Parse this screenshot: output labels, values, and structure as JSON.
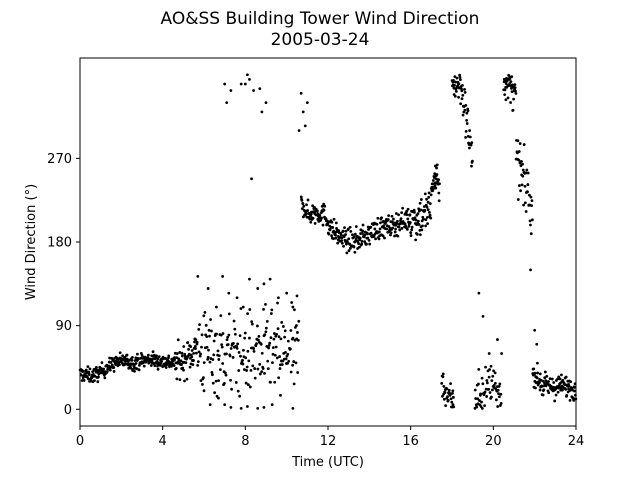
{
  "chart_data": {
    "type": "scatter",
    "title": "AO&SS Building Tower Wind Direction",
    "subtitle": "2005-03-24",
    "xlabel": "Time (UTC)",
    "ylabel": "Wind Direction (°)",
    "xlim": [
      0,
      24
    ],
    "ylim": [
      -18,
      378
    ],
    "xticks": [
      0,
      4,
      8,
      12,
      16,
      20,
      24
    ],
    "yticks": [
      0,
      90,
      180,
      270
    ],
    "grid": false,
    "marker_color": "#000000",
    "segments": [
      {
        "start": 0.0,
        "end": 4.6,
        "points": [
          [
            0.0,
            38
          ],
          [
            0.6,
            36
          ],
          [
            1.0,
            40
          ],
          [
            1.4,
            46
          ],
          [
            1.8,
            51
          ],
          [
            2.2,
            52
          ],
          [
            2.6,
            50
          ],
          [
            3.0,
            52
          ],
          [
            3.4,
            54
          ],
          [
            3.8,
            52
          ],
          [
            4.2,
            51
          ],
          [
            4.6,
            50
          ]
        ],
        "noise": 4,
        "n": 280
      },
      {
        "start": 4.6,
        "end": 5.6,
        "points": [
          [
            4.6,
            50
          ],
          [
            5.0,
            52
          ],
          [
            5.3,
            58
          ],
          [
            5.6,
            66
          ]
        ],
        "noise": 9,
        "n": 60
      },
      {
        "start": 5.6,
        "end": 10.6,
        "points": [
          [
            5.6,
            66
          ],
          [
            6.5,
            62
          ],
          [
            7.5,
            58
          ],
          [
            8.5,
            62
          ],
          [
            9.5,
            60
          ],
          [
            10.6,
            60
          ]
        ],
        "noise": 22,
        "n": 220
      },
      {
        "start": 10.7,
        "end": 12.6,
        "points": [
          [
            10.7,
            225
          ],
          [
            11.0,
            210
          ],
          [
            11.5,
            212
          ],
          [
            11.9,
            208
          ],
          [
            12.1,
            195
          ],
          [
            12.6,
            185
          ]
        ],
        "noise": 6,
        "n": 110
      },
      {
        "start": 12.6,
        "end": 16.0,
        "points": [
          [
            12.6,
            185
          ],
          [
            13.2,
            180
          ],
          [
            13.8,
            186
          ],
          [
            14.4,
            195
          ],
          [
            15.0,
            196
          ],
          [
            15.5,
            202
          ],
          [
            16.0,
            205
          ]
        ],
        "noise": 6,
        "n": 190
      },
      {
        "start": 16.0,
        "end": 17.0,
        "points": [
          [
            16.0,
            205
          ],
          [
            16.5,
            208
          ],
          [
            17.0,
            216
          ]
        ],
        "noise": 12,
        "n": 60
      },
      {
        "start": 17.0,
        "end": 17.4,
        "points": [
          [
            17.0,
            230
          ],
          [
            17.2,
            255
          ],
          [
            17.4,
            240
          ]
        ],
        "noise": 10,
        "n": 30
      },
      {
        "start": 17.5,
        "end": 18.1,
        "points": [
          [
            17.5,
            30
          ],
          [
            17.8,
            15
          ],
          [
            18.1,
            8
          ]
        ],
        "noise": 8,
        "n": 35
      },
      {
        "start": 18.0,
        "end": 19.0,
        "points": [
          [
            18.0,
            355
          ],
          [
            18.4,
            350
          ],
          [
            18.8,
            300
          ],
          [
            19.0,
            270
          ]
        ],
        "noise": 12,
        "n": 60
      },
      {
        "start": 19.1,
        "end": 20.4,
        "points": [
          [
            19.1,
            5
          ],
          [
            19.6,
            20
          ],
          [
            20.0,
            30
          ],
          [
            20.4,
            15
          ]
        ],
        "noise": 14,
        "n": 60
      },
      {
        "start": 20.5,
        "end": 21.1,
        "points": [
          [
            20.5,
            355
          ],
          [
            20.8,
            348
          ],
          [
            21.1,
            335
          ]
        ],
        "noise": 10,
        "n": 40
      },
      {
        "start": 21.1,
        "end": 21.9,
        "points": [
          [
            21.1,
            270
          ],
          [
            21.4,
            250
          ],
          [
            21.7,
            230
          ],
          [
            21.9,
            210
          ]
        ],
        "noise": 14,
        "n": 45
      },
      {
        "start": 21.9,
        "end": 24.0,
        "points": [
          [
            21.9,
            40
          ],
          [
            22.4,
            25
          ],
          [
            23.0,
            24
          ],
          [
            23.6,
            25
          ],
          [
            24.0,
            22
          ]
        ],
        "noise": 6,
        "n": 130
      }
    ],
    "outliers": [
      [
        5.7,
        143
      ],
      [
        6.2,
        130
      ],
      [
        6.6,
        110
      ],
      [
        6.9,
        143
      ],
      [
        7.2,
        125
      ],
      [
        7.6,
        120
      ],
      [
        7.9,
        110
      ],
      [
        8.2,
        140
      ],
      [
        8.6,
        130
      ],
      [
        8.9,
        135
      ],
      [
        9.2,
        140
      ],
      [
        9.6,
        120
      ],
      [
        10.0,
        125
      ],
      [
        10.3,
        110
      ],
      [
        10.5,
        122
      ],
      [
        6.0,
        20
      ],
      [
        6.3,
        5
      ],
      [
        6.7,
        12
      ],
      [
        7.0,
        5
      ],
      [
        7.3,
        2
      ],
      [
        7.8,
        1
      ],
      [
        8.1,
        3
      ],
      [
        8.6,
        1
      ],
      [
        8.9,
        2
      ],
      [
        9.3,
        5
      ],
      [
        9.7,
        15
      ],
      [
        10.3,
        1
      ],
      [
        7.0,
        350
      ],
      [
        7.1,
        330
      ],
      [
        7.3,
        343
      ],
      [
        7.8,
        350
      ],
      [
        8.0,
        350
      ],
      [
        8.1,
        360
      ],
      [
        8.2,
        355
      ],
      [
        8.3,
        248
      ],
      [
        8.4,
        343
      ],
      [
        8.7,
        345
      ],
      [
        8.8,
        320
      ],
      [
        9.0,
        330
      ],
      [
        10.7,
        340
      ],
      [
        10.8,
        320
      ],
      [
        10.9,
        305
      ],
      [
        11.0,
        330
      ],
      [
        10.6,
        300
      ],
      [
        19.3,
        125
      ],
      [
        19.5,
        100
      ],
      [
        19.8,
        60
      ],
      [
        20.2,
        75
      ],
      [
        20.4,
        60
      ],
      [
        21.8,
        150
      ],
      [
        22.0,
        85
      ],
      [
        22.1,
        70
      ]
    ]
  }
}
